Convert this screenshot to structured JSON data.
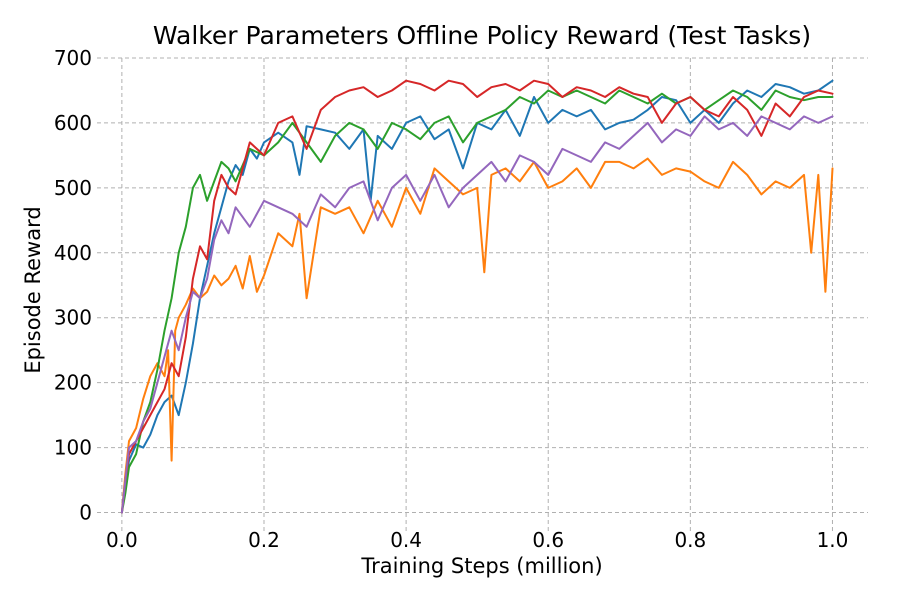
{
  "chart_data": {
    "type": "line",
    "title": "Walker Parameters Offline Policy Reward (Test Tasks)",
    "xlabel": "Training Steps (million)",
    "ylabel": "Episode Reward",
    "xlim": [
      -0.035,
      1.05
    ],
    "ylim": [
      -30,
      700
    ],
    "xticks": [
      0.0,
      0.2,
      0.4,
      0.6,
      0.8,
      1.0
    ],
    "xtick_labels": [
      "0.0",
      "0.2",
      "0.4",
      "0.6",
      "0.8",
      "1.0"
    ],
    "yticks": [
      0,
      100,
      200,
      300,
      400,
      500,
      600,
      700
    ],
    "ytick_labels": [
      "0",
      "100",
      "200",
      "300",
      "400",
      "500",
      "600",
      "700"
    ],
    "grid": true,
    "legend": "none",
    "series": [
      {
        "name": "blue",
        "color": "#1f77b4",
        "x": [
          0.0,
          0.005,
          0.01,
          0.02,
          0.03,
          0.04,
          0.05,
          0.06,
          0.07,
          0.08,
          0.09,
          0.1,
          0.11,
          0.12,
          0.13,
          0.14,
          0.15,
          0.16,
          0.17,
          0.18,
          0.19,
          0.2,
          0.22,
          0.24,
          0.25,
          0.26,
          0.28,
          0.3,
          0.32,
          0.34,
          0.35,
          0.36,
          0.38,
          0.4,
          0.42,
          0.44,
          0.46,
          0.48,
          0.5,
          0.52,
          0.54,
          0.56,
          0.58,
          0.6,
          0.62,
          0.64,
          0.66,
          0.68,
          0.7,
          0.72,
          0.74,
          0.76,
          0.78,
          0.8,
          0.82,
          0.84,
          0.86,
          0.88,
          0.9,
          0.92,
          0.94,
          0.96,
          0.98,
          1.0
        ],
        "y": [
          0,
          45,
          80,
          105,
          100,
          120,
          150,
          170,
          180,
          150,
          200,
          260,
          330,
          380,
          430,
          470,
          510,
          535,
          520,
          560,
          545,
          570,
          585,
          570,
          520,
          595,
          590,
          585,
          560,
          590,
          480,
          580,
          560,
          600,
          610,
          575,
          590,
          530,
          600,
          590,
          620,
          580,
          640,
          600,
          620,
          610,
          620,
          590,
          600,
          605,
          620,
          640,
          635,
          600,
          620,
          600,
          630,
          650,
          640,
          660,
          655,
          645,
          650,
          665
        ]
      },
      {
        "name": "orange",
        "color": "#ff7f0e",
        "x": [
          0.0,
          0.005,
          0.01,
          0.02,
          0.03,
          0.04,
          0.05,
          0.06,
          0.065,
          0.07,
          0.075,
          0.08,
          0.09,
          0.1,
          0.11,
          0.12,
          0.13,
          0.14,
          0.15,
          0.16,
          0.17,
          0.18,
          0.19,
          0.2,
          0.22,
          0.24,
          0.25,
          0.26,
          0.28,
          0.3,
          0.32,
          0.34,
          0.36,
          0.38,
          0.4,
          0.42,
          0.44,
          0.46,
          0.48,
          0.5,
          0.51,
          0.52,
          0.54,
          0.56,
          0.58,
          0.6,
          0.62,
          0.64,
          0.66,
          0.68,
          0.7,
          0.72,
          0.74,
          0.76,
          0.78,
          0.8,
          0.82,
          0.84,
          0.86,
          0.88,
          0.9,
          0.92,
          0.94,
          0.96,
          0.97,
          0.98,
          0.99,
          1.0
        ],
        "y": [
          0,
          60,
          110,
          130,
          175,
          210,
          230,
          210,
          250,
          80,
          280,
          300,
          320,
          345,
          330,
          340,
          365,
          350,
          360,
          380,
          345,
          395,
          340,
          365,
          430,
          410,
          460,
          330,
          470,
          460,
          470,
          430,
          480,
          440,
          500,
          460,
          530,
          510,
          490,
          500,
          370,
          520,
          530,
          510,
          540,
          500,
          510,
          530,
          500,
          540,
          540,
          530,
          545,
          520,
          530,
          525,
          510,
          500,
          540,
          520,
          490,
          510,
          500,
          520,
          400,
          520,
          340,
          530
        ]
      },
      {
        "name": "green",
        "color": "#2ca02c",
        "x": [
          0.0,
          0.005,
          0.01,
          0.02,
          0.03,
          0.04,
          0.05,
          0.06,
          0.07,
          0.08,
          0.09,
          0.1,
          0.11,
          0.12,
          0.13,
          0.14,
          0.15,
          0.16,
          0.18,
          0.2,
          0.22,
          0.24,
          0.26,
          0.28,
          0.3,
          0.32,
          0.34,
          0.36,
          0.38,
          0.4,
          0.42,
          0.44,
          0.46,
          0.48,
          0.5,
          0.52,
          0.54,
          0.56,
          0.58,
          0.6,
          0.62,
          0.64,
          0.66,
          0.68,
          0.7,
          0.72,
          0.74,
          0.76,
          0.78,
          0.8,
          0.82,
          0.84,
          0.86,
          0.88,
          0.9,
          0.92,
          0.94,
          0.96,
          0.98,
          1.0
        ],
        "y": [
          0,
          30,
          70,
          90,
          140,
          170,
          220,
          280,
          330,
          400,
          440,
          500,
          520,
          480,
          510,
          540,
          530,
          510,
          560,
          550,
          570,
          600,
          570,
          540,
          580,
          600,
          590,
          560,
          600,
          590,
          575,
          600,
          610,
          570,
          600,
          610,
          620,
          640,
          630,
          650,
          640,
          650,
          640,
          630,
          650,
          640,
          630,
          645,
          630,
          640,
          620,
          635,
          650,
          640,
          620,
          650,
          640,
          635,
          640,
          640
        ]
      },
      {
        "name": "red",
        "color": "#d62728",
        "x": [
          0.0,
          0.005,
          0.01,
          0.02,
          0.03,
          0.04,
          0.05,
          0.06,
          0.07,
          0.08,
          0.09,
          0.1,
          0.11,
          0.12,
          0.13,
          0.14,
          0.15,
          0.16,
          0.18,
          0.2,
          0.22,
          0.24,
          0.26,
          0.28,
          0.3,
          0.32,
          0.34,
          0.36,
          0.38,
          0.4,
          0.42,
          0.44,
          0.46,
          0.48,
          0.5,
          0.52,
          0.54,
          0.56,
          0.58,
          0.6,
          0.62,
          0.64,
          0.66,
          0.68,
          0.7,
          0.72,
          0.74,
          0.76,
          0.78,
          0.8,
          0.82,
          0.84,
          0.86,
          0.88,
          0.9,
          0.92,
          0.94,
          0.96,
          0.98,
          1.0
        ],
        "y": [
          0,
          50,
          90,
          110,
          130,
          150,
          170,
          190,
          230,
          210,
          270,
          360,
          410,
          390,
          480,
          520,
          500,
          490,
          570,
          550,
          600,
          610,
          560,
          620,
          640,
          650,
          655,
          640,
          650,
          665,
          660,
          650,
          665,
          660,
          640,
          655,
          660,
          650,
          665,
          660,
          640,
          655,
          650,
          640,
          655,
          645,
          640,
          600,
          630,
          640,
          620,
          610,
          640,
          620,
          580,
          630,
          610,
          640,
          650,
          645
        ]
      },
      {
        "name": "purple",
        "color": "#9467bd",
        "x": [
          0.0,
          0.005,
          0.01,
          0.02,
          0.03,
          0.04,
          0.05,
          0.06,
          0.07,
          0.08,
          0.09,
          0.1,
          0.11,
          0.12,
          0.13,
          0.14,
          0.15,
          0.16,
          0.18,
          0.2,
          0.22,
          0.24,
          0.26,
          0.28,
          0.3,
          0.32,
          0.34,
          0.36,
          0.38,
          0.4,
          0.42,
          0.44,
          0.46,
          0.48,
          0.5,
          0.52,
          0.54,
          0.56,
          0.58,
          0.6,
          0.62,
          0.64,
          0.66,
          0.68,
          0.7,
          0.72,
          0.74,
          0.76,
          0.78,
          0.8,
          0.82,
          0.84,
          0.86,
          0.88,
          0.9,
          0.92,
          0.94,
          0.96,
          0.98,
          1.0
        ],
        "y": [
          0,
          50,
          100,
          110,
          140,
          160,
          200,
          240,
          280,
          250,
          300,
          340,
          330,
          360,
          420,
          450,
          430,
          470,
          440,
          480,
          470,
          460,
          440,
          490,
          470,
          500,
          510,
          450,
          500,
          520,
          480,
          520,
          470,
          500,
          520,
          540,
          510,
          550,
          540,
          520,
          560,
          550,
          540,
          570,
          560,
          580,
          600,
          570,
          590,
          580,
          610,
          590,
          600,
          580,
          610,
          600,
          590,
          610,
          600,
          610
        ]
      }
    ]
  }
}
